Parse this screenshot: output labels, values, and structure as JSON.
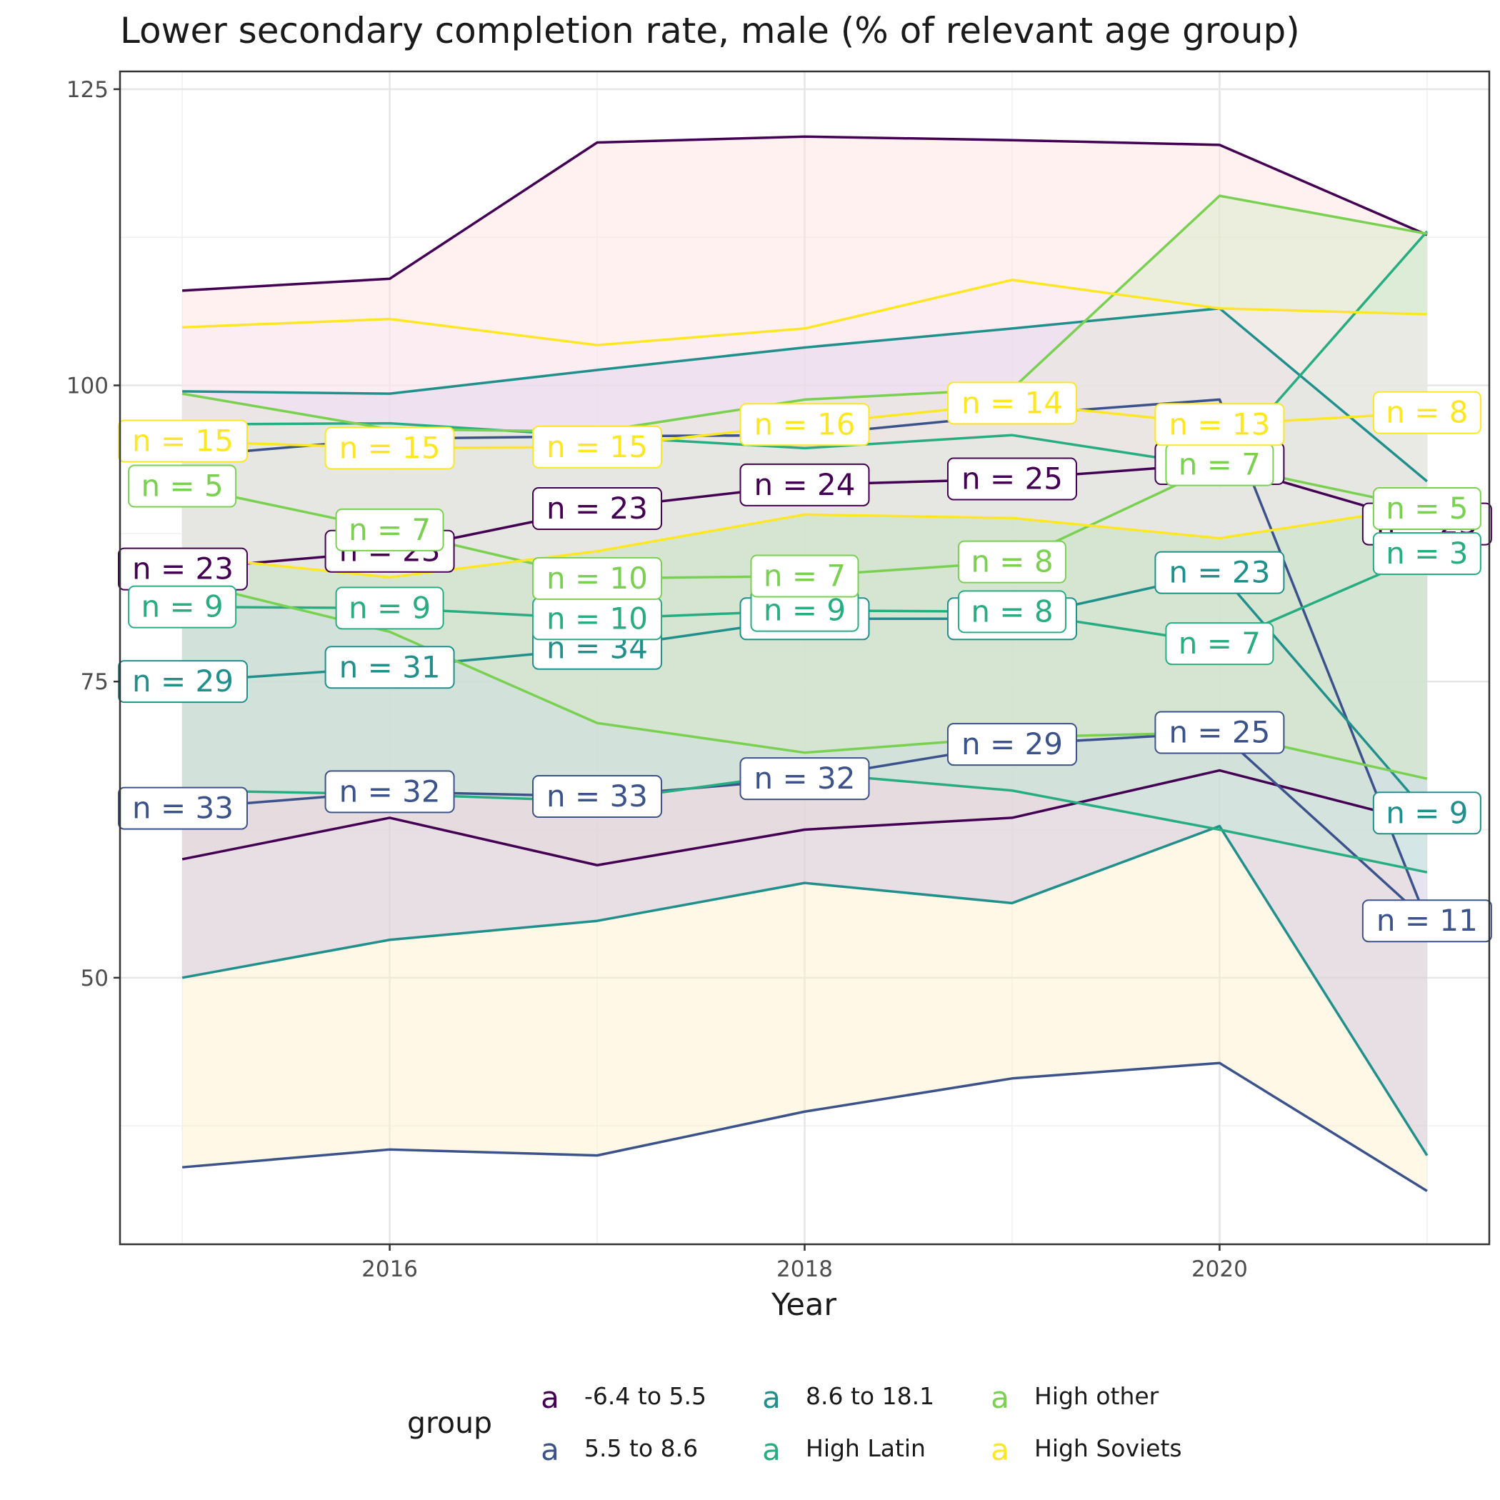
{
  "title": "Lower secondary completion rate, male (% of relevant age group)",
  "chart_data": {
    "type": "line",
    "title": "Lower secondary completion rate, male (% of relevant age group)",
    "xlabel": "Year",
    "ylabel": "",
    "xlim": [
      2014.7,
      2021.3
    ],
    "ylim": [
      27.5,
      126.5
    ],
    "x_ticks": [
      2016,
      2018,
      2020
    ],
    "y_ticks": [
      50,
      75,
      100,
      125
    ],
    "grid": true,
    "legend_title": "group",
    "legend_position": "bottom",
    "legend_key_glyph": "a",
    "x": [
      2015,
      2016,
      2017,
      2018,
      2019,
      2020,
      2021
    ],
    "series": [
      {
        "name": "-6.4 to 5.5",
        "color": "#440154",
        "fill": "#fde0dd",
        "upper": [
          108,
          109,
          120.5,
          121,
          120.7,
          120.3,
          112.7
        ],
        "median": [
          84.5,
          86,
          89.6,
          91.6,
          92.1,
          93.4,
          88.3
        ],
        "lower": [
          60,
          63.5,
          59.5,
          62.5,
          63.5,
          67.5,
          63
        ],
        "labels": [
          "n = 23",
          "n = 23",
          "n = 23",
          "n = 24",
          "n = 25",
          "n = 25",
          "n = 25"
        ]
      },
      {
        "name": "5.5 to 8.6",
        "color": "#3b528b",
        "fill": "#fff0c8",
        "upper": [
          94,
          95.5,
          95.7,
          95.8,
          97.5,
          98.8,
          54.8
        ],
        "median": [
          64.3,
          65.7,
          65.3,
          66.8,
          69.7,
          70.7,
          54.8
        ],
        "lower": [
          34,
          35.5,
          35,
          38.7,
          41.5,
          42.8,
          32
        ],
        "labels": [
          "n = 33",
          "n = 32",
          "n = 33",
          "n = 32",
          "n = 29",
          "n = 25",
          "n = 11"
        ]
      },
      {
        "name": "8.6 to 18.1",
        "color": "#21908c",
        "fill": "#c9c0e0",
        "upper": [
          99.5,
          99.3,
          101.3,
          103.2,
          104.8,
          106.5,
          91.9
        ],
        "median": [
          75,
          76.2,
          77.8,
          80.3,
          80.3,
          84.2,
          63.9
        ],
        "lower": [
          50,
          53.2,
          54.8,
          58,
          56.3,
          62.8,
          35
        ],
        "labels": [
          "n = 29",
          "n = 31",
          "n = 34",
          "n = 33",
          "n = 29",
          "n = 23",
          "n = 9"
        ]
      },
      {
        "name": "High Latin",
        "color": "#27ad81",
        "fill": "#bde8d6",
        "upper": [
          96.7,
          96.8,
          95.7,
          94.7,
          95.8,
          93.1,
          113
        ],
        "median": [
          81.3,
          81.2,
          80.3,
          81,
          80.9,
          78.2,
          85.8
        ],
        "lower": [
          65.8,
          65.5,
          64.9,
          67.3,
          65.8,
          62.5,
          58.9
        ],
        "labels": [
          "n = 9",
          "n = 9",
          "n = 10",
          "n = 9",
          "n = 8",
          "n = 7",
          "n = 3"
        ]
      },
      {
        "name": "High other",
        "color": "#7ad151",
        "fill": "#d7ecc6",
        "upper": [
          99.3,
          96.3,
          96.1,
          98.8,
          99.7,
          116,
          112.8
        ],
        "median": [
          91.5,
          87.8,
          83.7,
          83.9,
          85.1,
          93.3,
          89.6
        ],
        "lower": [
          83.5,
          79.2,
          71.5,
          69,
          70.3,
          70.7,
          66.8
        ],
        "labels": [
          "n = 5",
          "n = 7",
          "n = 10",
          "n = 7",
          "n = 8",
          "n = 7",
          "n = 5"
        ]
      },
      {
        "name": "High Soviets",
        "color": "#fde725",
        "fill": "#fbe8f6",
        "upper": [
          104.9,
          105.6,
          103.4,
          104.8,
          108.9,
          106.5,
          106
        ],
        "median": [
          95.3,
          94.7,
          94.8,
          96.7,
          98.5,
          96.7,
          97.7
        ],
        "lower": [
          85.6,
          83.8,
          86,
          89.1,
          88.8,
          87.1,
          89.8
        ],
        "labels": [
          "n = 15",
          "n = 15",
          "n = 15",
          "n = 16",
          "n = 14",
          "n = 13",
          "n = 8"
        ]
      }
    ]
  }
}
